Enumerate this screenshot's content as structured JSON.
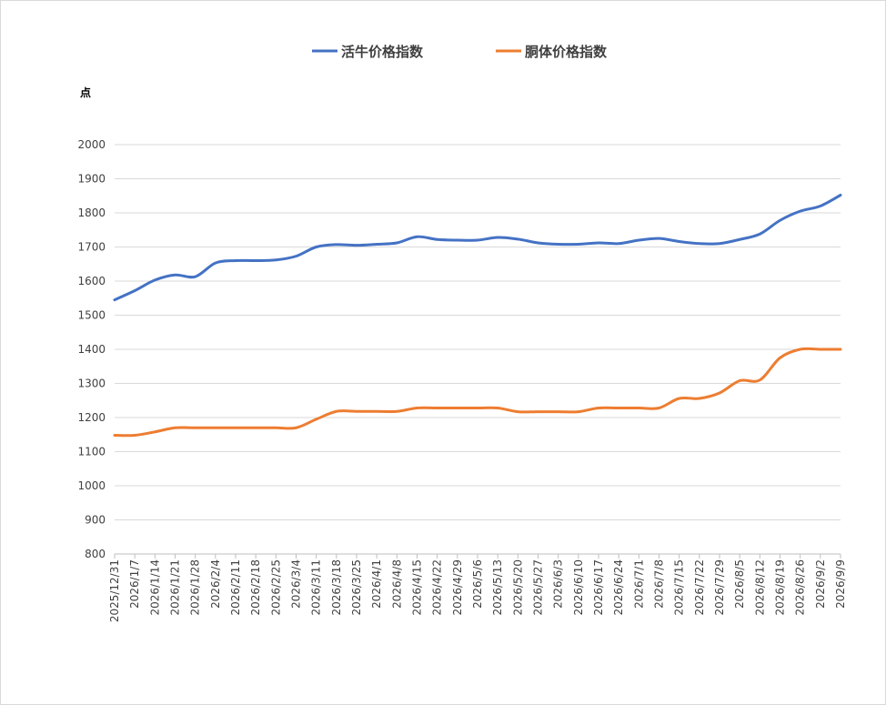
{
  "chart_data": {
    "type": "line",
    "ylabel": "点",
    "ylim": [
      800,
      2000
    ],
    "yticks": [
      800,
      900,
      1000,
      1100,
      1200,
      1300,
      1400,
      1500,
      1600,
      1700,
      1800,
      1900,
      2000
    ],
    "grid": true,
    "legend_position": "top-center",
    "categories": [
      "2025/12/31",
      "2026/1/7",
      "2026/1/14",
      "2026/1/21",
      "2026/1/28",
      "2026/2/4",
      "2026/2/11",
      "2026/2/18",
      "2026/2/25",
      "2026/3/4",
      "2026/3/11",
      "2026/3/18",
      "2026/3/25",
      "2026/4/1",
      "2026/4/8",
      "2026/4/15",
      "2026/4/22",
      "2026/4/29",
      "2026/5/6",
      "2026/5/13",
      "2026/5/20",
      "2026/5/27",
      "2026/6/3",
      "2026/6/10",
      "2026/6/17",
      "2026/6/24",
      "2026/7/1",
      "2026/7/8",
      "2026/7/15",
      "2026/7/22",
      "2026/7/29",
      "2026/8/5",
      "2026/8/12",
      "2026/8/19",
      "2026/8/26",
      "2026/9/2",
      "2026/9/9"
    ],
    "series": [
      {
        "name": "活牛价格指数",
        "color": "#4472c4",
        "values": [
          1545,
          1572,
          1603,
          1618,
          1613,
          1653,
          1660,
          1660,
          1662,
          1673,
          1700,
          1707,
          1705,
          1708,
          1712,
          1730,
          1722,
          1720,
          1720,
          1728,
          1723,
          1712,
          1708,
          1708,
          1712,
          1710,
          1720,
          1725,
          1716,
          1710,
          1710,
          1722,
          1738,
          1778,
          1805,
          1820,
          1852
        ]
      },
      {
        "name": "胴体价格指数",
        "color": "#ed7d31",
        "values": [
          1148,
          1148,
          1158,
          1170,
          1170,
          1170,
          1170,
          1170,
          1170,
          1170,
          1195,
          1218,
          1218,
          1218,
          1218,
          1228,
          1228,
          1228,
          1228,
          1228,
          1217,
          1217,
          1217,
          1217,
          1228,
          1228,
          1228,
          1228,
          1256,
          1256,
          1272,
          1308,
          1310,
          1375,
          1400,
          1400,
          1400
        ]
      }
    ]
  }
}
